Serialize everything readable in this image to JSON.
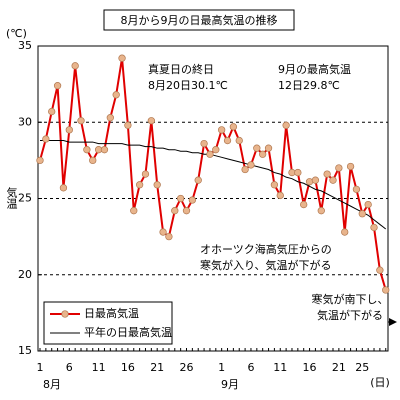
{
  "chart_data": {
    "type": "line",
    "title": "8月から9月の日最高気温の推移",
    "y_unit": "(℃)",
    "y_label": "気温",
    "x_unit": "(日)",
    "months": [
      "8月",
      "9月"
    ],
    "categories": [
      "1",
      null,
      null,
      null,
      null,
      "6",
      null,
      null,
      null,
      null,
      "11",
      null,
      null,
      null,
      null,
      "16",
      null,
      null,
      null,
      null,
      "21",
      null,
      null,
      null,
      null,
      "26",
      null,
      null,
      null,
      null,
      null,
      "1",
      null,
      null,
      null,
      null,
      "6",
      null,
      null,
      null,
      null,
      "11",
      null,
      null,
      null,
      null,
      "16",
      null,
      null,
      null,
      null,
      "21",
      null,
      null,
      null,
      "25",
      null,
      null,
      null,
      null
    ],
    "series": [
      {
        "name": "日最高気温",
        "color": "#e00000",
        "marker_color": "#e8b48c",
        "values": [
          27.5,
          28.9,
          30.7,
          32.4,
          25.7,
          29.5,
          33.7,
          30.1,
          28.2,
          27.5,
          28.2,
          28.2,
          30.3,
          31.8,
          34.2,
          29.8,
          24.2,
          25.9,
          26.6,
          30.1,
          25.9,
          22.8,
          22.5,
          24.2,
          25.0,
          24.2,
          24.9,
          26.2,
          28.6,
          27.9,
          28.2,
          29.5,
          28.8,
          29.7,
          28.8,
          26.9,
          27.2,
          28.3,
          27.9,
          28.3,
          25.9,
          25.2,
          29.8,
          26.7,
          26.7,
          24.6,
          26.1,
          26.2,
          24.2,
          26.6,
          26.2,
          27.0,
          22.8,
          27.1,
          25.6,
          24.0,
          24.6,
          23.1,
          20.3,
          19.0
        ]
      },
      {
        "name": "平年の日最高気温",
        "color": "#000000",
        "values": [
          28.8,
          28.8,
          28.8,
          28.8,
          28.8,
          28.7,
          28.7,
          28.7,
          28.7,
          28.7,
          28.6,
          28.6,
          28.6,
          28.6,
          28.6,
          28.5,
          28.5,
          28.5,
          28.4,
          28.4,
          28.3,
          28.3,
          28.2,
          28.2,
          28.1,
          28.1,
          28.0,
          28.0,
          27.9,
          27.9,
          27.8,
          27.7,
          27.6,
          27.5,
          27.4,
          27.3,
          27.2,
          27.1,
          27.0,
          26.9,
          26.7,
          26.6,
          26.4,
          26.3,
          26.1,
          26.0,
          25.8,
          25.6,
          25.5,
          25.3,
          25.1,
          24.9,
          24.7,
          24.5,
          24.3,
          24.1,
          23.9,
          23.6,
          23.3,
          23.0
        ]
      }
    ],
    "ylim": [
      15,
      35
    ],
    "yticks": [
      15,
      20,
      25,
      30,
      35
    ],
    "grid": true,
    "legend": "lower left",
    "annotations": [
      {
        "lines": [
          "真夏日の終日",
          "8月20日30.1℃"
        ]
      },
      {
        "lines": [
          "9月の最高気温",
          "12日29.8℃"
        ]
      },
      {
        "lines": [
          "オホーツク海高気圧からの",
          "寒気が入り、気温が下がる"
        ]
      },
      {
        "lines": [
          "寒気が南下し、",
          "気温が下がる"
        ]
      }
    ]
  }
}
